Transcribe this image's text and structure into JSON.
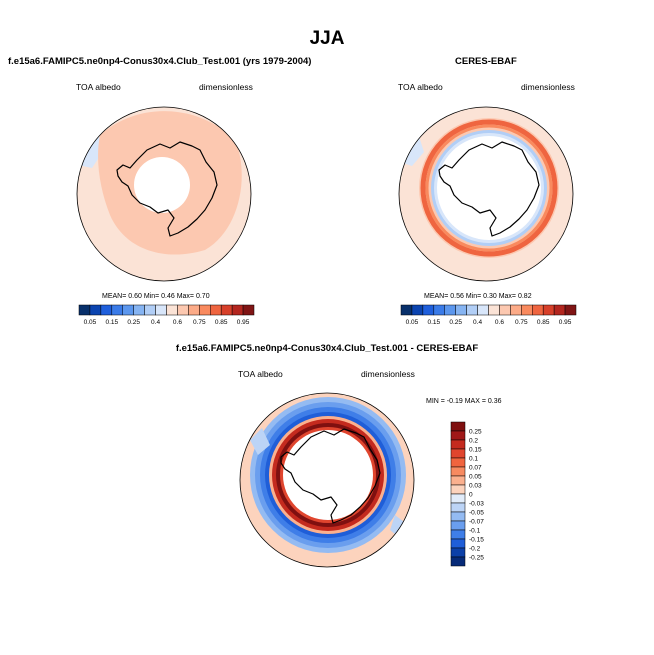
{
  "season": "JJA",
  "panels": {
    "model": {
      "title": "f.e15a6.FAMIPC5.ne0np4-Conus30x4.Club_Test.001 (yrs 1979-2004)",
      "left_label": "TOA albedo",
      "right_label": "dimensionless",
      "stats": "MEAN=   0.60  Min=   0.46  Max=   0.70"
    },
    "obs": {
      "title": "CERES-EBAF",
      "left_label": "TOA albedo",
      "right_label": "dimensionless",
      "stats": "MEAN=   0.56  Min=   0.30  Max=   0.82"
    },
    "diff": {
      "title": "f.e15a6.FAMIPC5.ne0np4-Conus30x4.Club_Test.001 - CERES-EBAF",
      "left_label": "TOA albedo",
      "right_label": "dimensionless",
      "stats": "MIN =  -0.19  MAX =   0.36"
    }
  },
  "chart_data": [
    {
      "type": "heatmap",
      "projection": "south-polar-stereographic",
      "title": "f.e15a6.FAMIPC5.ne0np4-Conus30x4.Club_Test.001 (yrs 1979-2004)",
      "variable": "TOA albedo",
      "units": "dimensionless",
      "mean": 0.6,
      "min": 0.46,
      "max": 0.7,
      "colorbar": {
        "labels": [
          "0.05",
          "0.15",
          "0.25",
          "0.4",
          "0.6",
          "0.75",
          "0.85",
          "0.95"
        ],
        "colors": [
          "#08306b",
          "#0b44b0",
          "#1f5fdc",
          "#3a7be8",
          "#5c97ee",
          "#86b4f2",
          "#b1cef6",
          "#d8e6fa",
          "#fbe3d6",
          "#fcc8b0",
          "#fcab88",
          "#f98a5e",
          "#ef6540",
          "#d7402a",
          "#b3261f",
          "#801515"
        ],
        "label_positions": [
          1,
          3,
          5,
          7,
          9,
          11,
          13,
          15
        ]
      },
      "zones": [
        {
          "name": "open ocean",
          "approx_value": 0.6
        },
        {
          "name": "sea ice belt",
          "approx_value": 0.65
        },
        {
          "name": "antarctic interior (polar night)",
          "approx_value": "missing"
        }
      ]
    },
    {
      "type": "heatmap",
      "projection": "south-polar-stereographic",
      "title": "CERES-EBAF",
      "variable": "TOA albedo",
      "units": "dimensionless",
      "mean": 0.56,
      "min": 0.3,
      "max": 0.82,
      "colorbar": {
        "labels": [
          "0.05",
          "0.15",
          "0.25",
          "0.4",
          "0.6",
          "0.75",
          "0.85",
          "0.95"
        ],
        "colors": [
          "#08306b",
          "#0b44b0",
          "#1f5fdc",
          "#3a7be8",
          "#5c97ee",
          "#86b4f2",
          "#b1cef6",
          "#d8e6fa",
          "#fbe3d6",
          "#fcc8b0",
          "#fcab88",
          "#f98a5e",
          "#ef6540",
          "#d7402a",
          "#b3261f",
          "#801515"
        ],
        "label_positions": [
          1,
          3,
          5,
          7,
          9,
          11,
          13,
          15
        ]
      },
      "zones": [
        {
          "name": "open ocean",
          "approx_value": 0.6
        },
        {
          "name": "sea ice edge ring",
          "approx_value": 0.8
        },
        {
          "name": "inner ring",
          "approx_value": 0.4
        },
        {
          "name": "antarctic interior (polar night)",
          "approx_value": "missing"
        }
      ]
    },
    {
      "type": "heatmap",
      "projection": "south-polar-stereographic",
      "title": "f.e15a6.FAMIPC5.ne0np4-Conus30x4.Club_Test.001 - CERES-EBAF",
      "variable": "TOA albedo",
      "units": "dimensionless",
      "min": -0.19,
      "max": 0.36,
      "colorbar": {
        "labels": [
          "0.25",
          "0.2",
          "0.15",
          "0.1",
          "0.07",
          "0.05",
          "0.03",
          "0",
          "-0.03",
          "-0.05",
          "-0.07",
          "-0.1",
          "-0.15",
          "-0.2",
          "-0.25"
        ],
        "colors": [
          "#7f1010",
          "#a01818",
          "#c42a1e",
          "#e0452e",
          "#f0643e",
          "#f78a60",
          "#fbb08e",
          "#fcd3bd",
          "#e1ecfa",
          "#bcd4f6",
          "#94bbf2",
          "#6a9eee",
          "#3f7ee8",
          "#1f5ed8",
          "#0c40a8",
          "#062a78"
        ]
      },
      "zones": [
        {
          "name": "outer ocean",
          "approx_value": 0.03
        },
        {
          "name": "sea ice edge belt",
          "approx_value": -0.1
        },
        {
          "name": "coastal ring",
          "approx_value": 0.25
        },
        {
          "name": "antarctic interior (polar night)",
          "approx_value": "missing"
        }
      ]
    }
  ]
}
